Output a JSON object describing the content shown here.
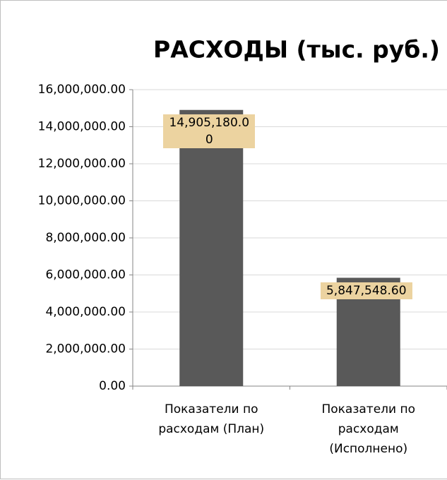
{
  "chart_data": {
    "type": "bar",
    "title": "РАСХОДЫ (тыс. руб.)",
    "categories": [
      "Показатели по расходам (План)",
      "Показатели по расходам (Исполнено)"
    ],
    "values": [
      14905180.0,
      5847548.6
    ],
    "value_labels": [
      "14,905,180.00",
      "5,847,548.60"
    ],
    "color": "#595959",
    "ylim": [
      0,
      16000000
    ],
    "yticks": [
      {
        "value": 0,
        "label": "0.00"
      },
      {
        "value": 2000000,
        "label": "2,000,000.00"
      },
      {
        "value": 4000000,
        "label": "4,000,000.00"
      },
      {
        "value": 6000000,
        "label": "6,000,000.00"
      },
      {
        "value": 8000000,
        "label": "8,000,000.00"
      },
      {
        "value": 10000000,
        "label": "10,000,000.00"
      },
      {
        "value": 12000000,
        "label": "12,000,000.00"
      },
      {
        "value": 14000000,
        "label": "14,000,000.00"
      },
      {
        "value": 16000000,
        "label": "16,000,000.00"
      }
    ],
    "grid": true
  }
}
